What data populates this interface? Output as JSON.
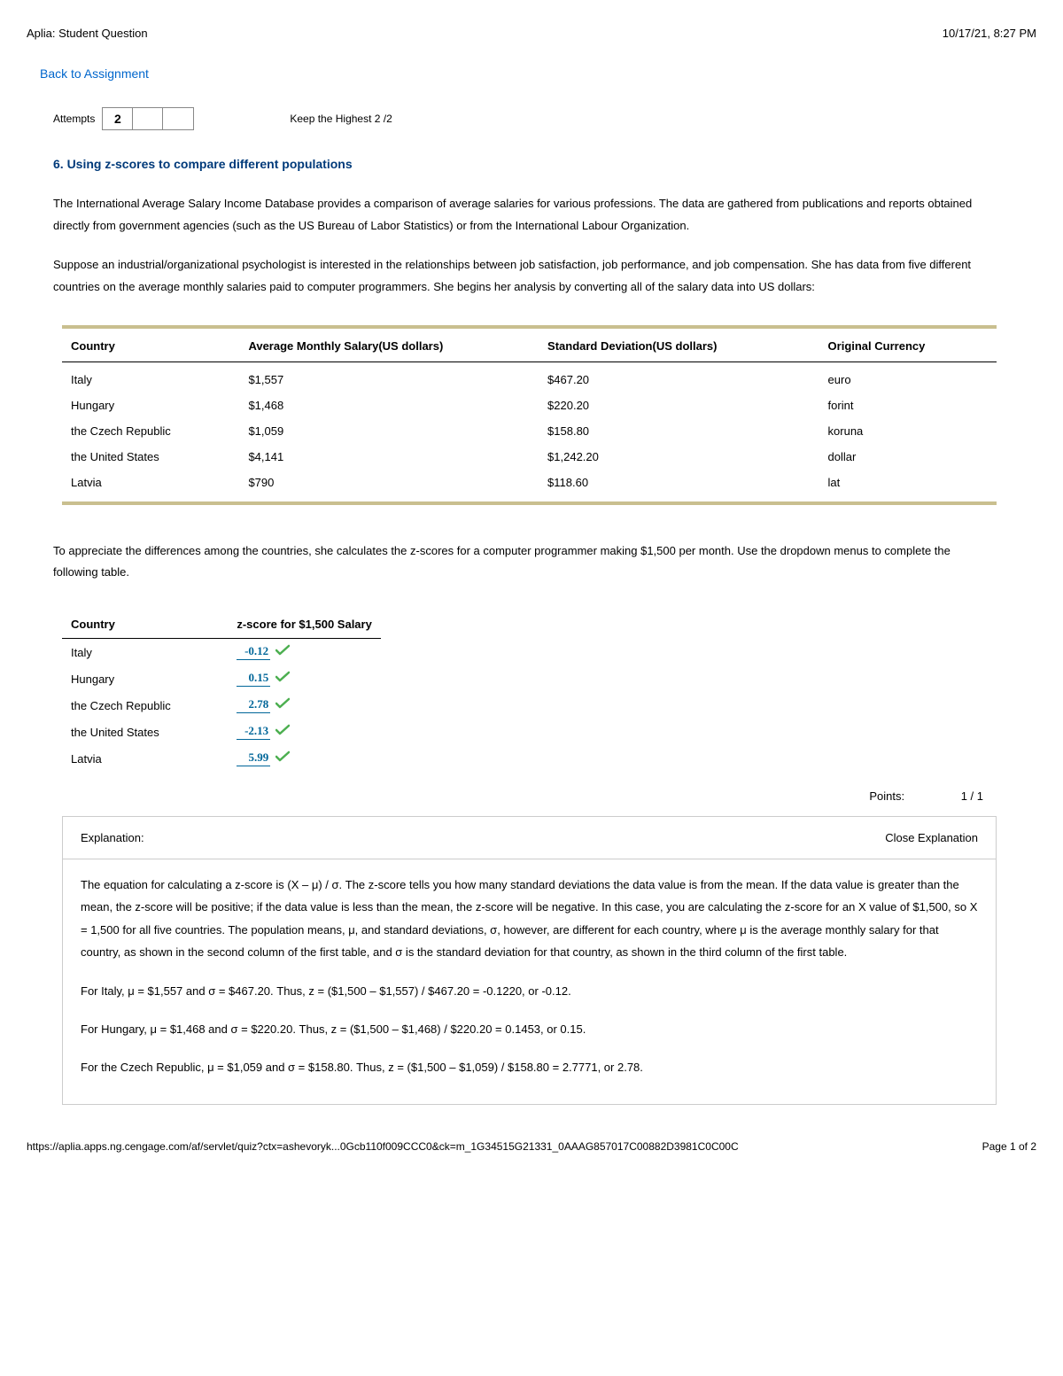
{
  "header": {
    "title": "Aplia: Student Question",
    "timestamp": "10/17/21, 8:27 PM"
  },
  "nav": {
    "back_link": "Back to Assignment"
  },
  "attempts": {
    "label": "Attempts",
    "boxes": [
      "2",
      "",
      ""
    ],
    "keep_highest": "Keep the Highest 2 /2"
  },
  "question": {
    "title": "6. Using z-scores to compare different populations",
    "para1": "The International Average Salary Income Database provides a comparison of average salaries for various professions. The data are gathered from publications and reports obtained directly from government agencies (such as the US Bureau of Labor Statistics) or from the International Labour Organization.",
    "para2": "Suppose an industrial/organizational psychologist is interested in the relationships between job satisfaction, job performance, and job compensation. She has data from five different countries on the average monthly salaries paid to computer programmers. She begins her analysis by converting all of the salary data into US dollars:"
  },
  "table1": {
    "columns": [
      "Country",
      "Average Monthly Salary(US dollars)",
      "Standard Deviation(US dollars)",
      "Original Currency"
    ],
    "rows": [
      [
        "Italy",
        "$1,557",
        "$467.20",
        "euro"
      ],
      [
        "Hungary",
        "$1,468",
        "$220.20",
        "forint"
      ],
      [
        "the Czech Republic",
        "$1,059",
        "$158.80",
        "koruna"
      ],
      [
        "the United States",
        "$4,141",
        "$1,242.20",
        "dollar"
      ],
      [
        "Latvia",
        "$790",
        "$118.60",
        "lat"
      ]
    ],
    "col_widths": [
      "19%",
      "32%",
      "30%",
      "19%"
    ],
    "border_color": "#c9bf8f"
  },
  "mid_text": "To appreciate the differences among the countries, she calculates the z-scores for a computer programmer making $1,500 per month. Use the dropdown menus to complete the following table.",
  "table2": {
    "columns": [
      "Country",
      "z-score for $1,500 Salary"
    ],
    "rows": [
      {
        "country": "Italy",
        "z": "-0.12"
      },
      {
        "country": "Hungary",
        "z": "0.15"
      },
      {
        "country": "the Czech Republic",
        "z": "2.78"
      },
      {
        "country": "the United States",
        "z": "-2.13"
      },
      {
        "country": "Latvia",
        "z": "5.99"
      }
    ],
    "z_color": "#006699",
    "check_color": "#4caf50"
  },
  "points": {
    "label": "Points:",
    "value": "1 / 1"
  },
  "explanation": {
    "heading": "Explanation:",
    "close": "Close Explanation",
    "paras": [
      "The equation for calculating a z-score is (X – μ) / σ. The z-score tells you how many standard deviations the data value is from the mean. If the data value is greater than the mean, the z-score will be positive; if the data value is less than the mean, the z-score will be negative. In this case, you are calculating the z-score for an X value of $1,500, so X = 1,500 for all five countries. The population means, μ, and standard deviations, σ, however, are different for each country, where μ is the average monthly salary for that country, as shown in the second column of the first table, and σ is the standard deviation for that country, as shown in the third column of the first table.",
      "For Italy, μ = $1,557 and σ = $467.20. Thus, z = ($1,500 – $1,557) / $467.20 = -0.1220, or -0.12.",
      "For Hungary, μ = $1,468 and σ = $220.20. Thus, z = ($1,500 – $1,468) / $220.20 = 0.1453, or 0.15.",
      "For the Czech Republic, μ = $1,059 and σ = $158.80. Thus, z = ($1,500 – $1,059) / $158.80 = 2.7771, or 2.78."
    ]
  },
  "footer": {
    "url": "https://aplia.apps.ng.cengage.com/af/servlet/quiz?ctx=ashevoryk...0Gcb110f009CCC0&ck=m_1G34515G21331_0AAAG857017C00882D3981C0C00C",
    "page": "Page 1 of 2"
  }
}
